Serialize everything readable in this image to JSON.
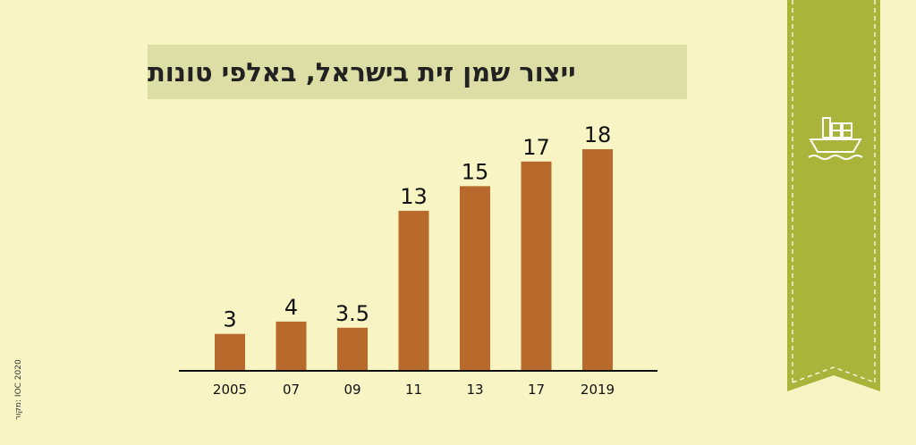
{
  "colors": {
    "background": "#f8f4c3",
    "title_box": "#dcdea5",
    "bar": "#b86a2c",
    "ribbon": "#aab33a",
    "ribbon_dash": "#f5f5e0",
    "icon": "#ffffff",
    "axis": "#111111"
  },
  "title": "ייצור שמן זית בישראל, באלפי טונות",
  "source": "מקור: IOC 2020",
  "ribbon_icon": "cargo-ship-icon",
  "chart_data": {
    "type": "bar",
    "title": "ייצור שמן זית בישראל, באלפי טונות",
    "categories": [
      "2005",
      "07",
      "09",
      "11",
      "13",
      "17",
      "2019"
    ],
    "values": [
      3,
      4,
      3.5,
      13,
      15,
      17,
      18
    ],
    "value_labels": [
      "3",
      "4",
      "3.5",
      "13",
      "15",
      "17",
      "18"
    ],
    "xlabel": "",
    "ylabel": "",
    "ylim": [
      0,
      18
    ],
    "grid": false,
    "legend": "none"
  }
}
